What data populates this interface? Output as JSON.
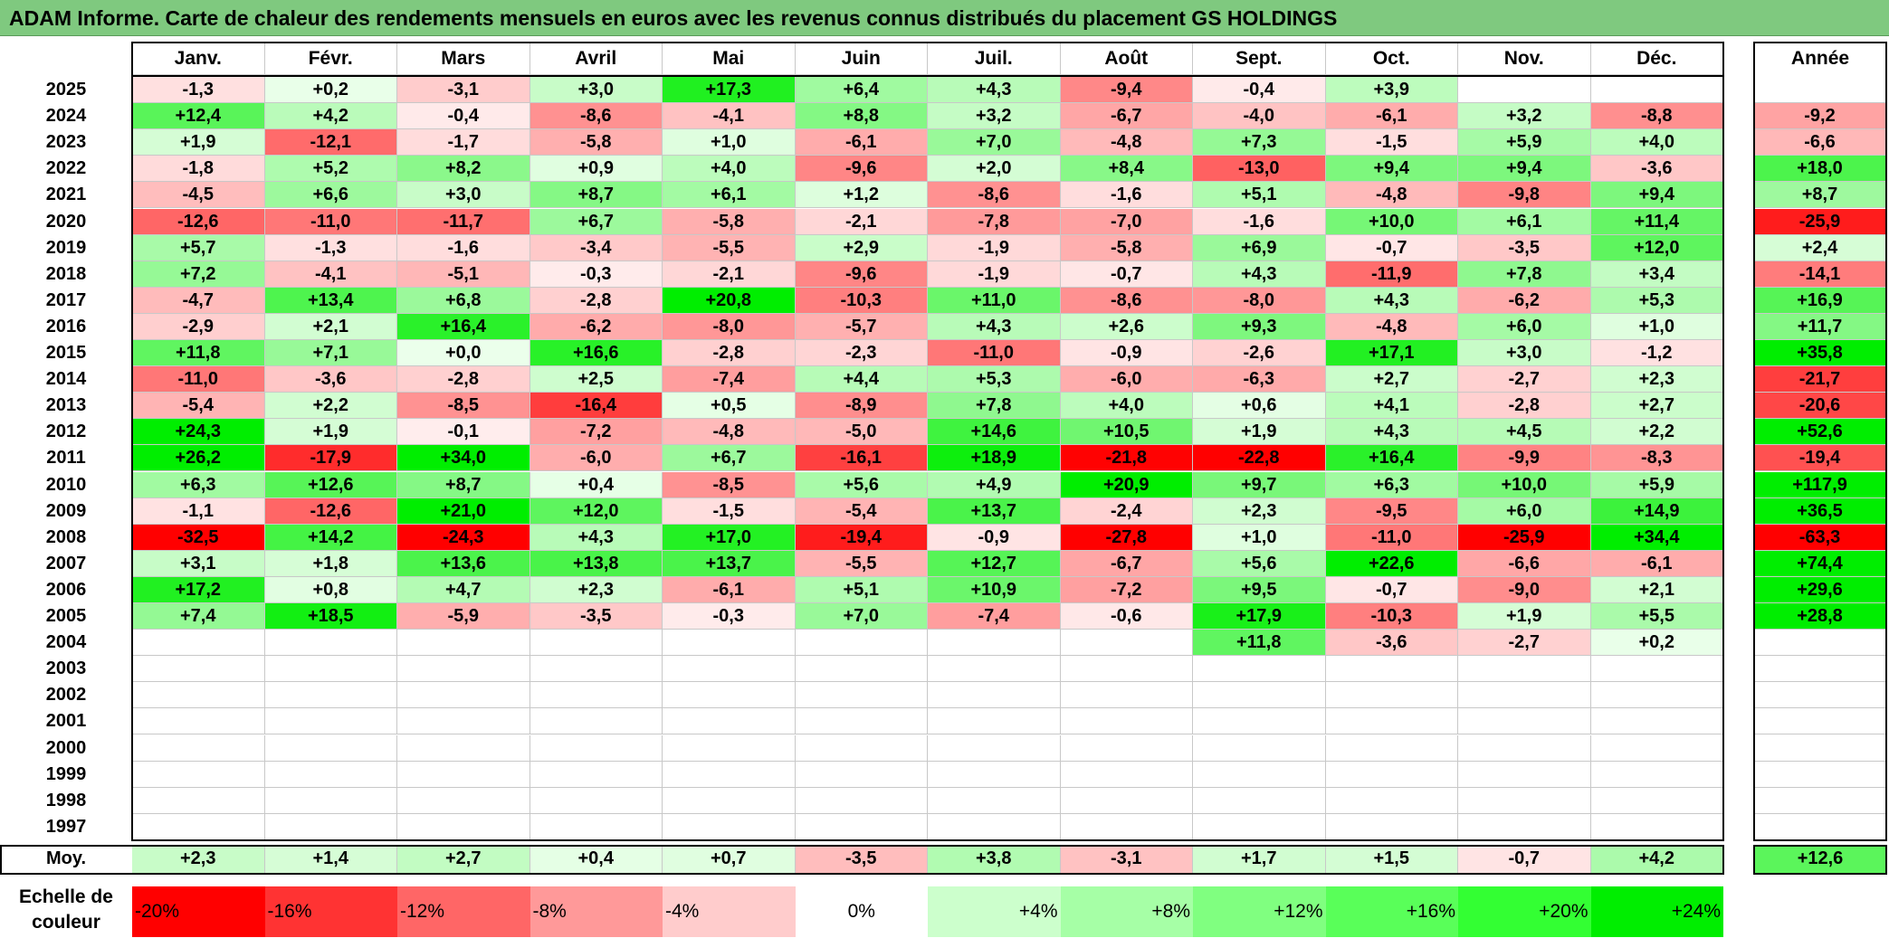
{
  "title": "ADAM Informe. Carte de chaleur des rendements mensuels en euros avec les revenus connus distribués du placement GS HOLDINGS",
  "chart_data": {
    "type": "heatmap",
    "title": "ADAM Informe. Carte de chaleur des rendements mensuels en euros avec les revenus connus distribués du placement GS HOLDINGS",
    "columns": [
      "Janv.",
      "Févr.",
      "Mars",
      "Avril",
      "Mai",
      "Juin",
      "Juil.",
      "Août",
      "Sept.",
      "Oct.",
      "Nov.",
      "Déc."
    ],
    "annual_header": "Année",
    "rows": [
      {
        "year": "2025",
        "values": [
          "-1,3",
          "+0,2",
          "-3,1",
          "+3,0",
          "+17,3",
          "+6,4",
          "+4,3",
          "-9,4",
          "-0,4",
          "+3,9",
          "",
          ""
        ],
        "annual": ""
      },
      {
        "year": "2024",
        "values": [
          "+12,4",
          "+4,2",
          "-0,4",
          "-8,6",
          "-4,1",
          "+8,8",
          "+3,2",
          "-6,7",
          "-4,0",
          "-6,1",
          "+3,2",
          "-8,8"
        ],
        "annual": "-9,2"
      },
      {
        "year": "2023",
        "values": [
          "+1,9",
          "-12,1",
          "-1,7",
          "-5,8",
          "+1,0",
          "-6,1",
          "+7,0",
          "-4,8",
          "+7,3",
          "-1,5",
          "+5,9",
          "+4,0"
        ],
        "annual": "-6,6"
      },
      {
        "year": "2022",
        "values": [
          "-1,8",
          "+5,2",
          "+8,2",
          "+0,9",
          "+4,0",
          "-9,6",
          "+2,0",
          "+8,4",
          "-13,0",
          "+9,4",
          "+9,4",
          "-3,6"
        ],
        "annual": "+18,0"
      },
      {
        "year": "2021",
        "values": [
          "-4,5",
          "+6,6",
          "+3,0",
          "+8,7",
          "+6,1",
          "+1,2",
          "-8,6",
          "-1,6",
          "+5,1",
          "-4,8",
          "-9,8",
          "+9,4"
        ],
        "annual": "+8,7"
      },
      {
        "year": "2020",
        "values": [
          "-12,6",
          "-11,0",
          "-11,7",
          "+6,7",
          "-5,8",
          "-2,1",
          "-7,8",
          "-7,0",
          "-1,6",
          "+10,0",
          "+6,1",
          "+11,4"
        ],
        "annual": "-25,9"
      },
      {
        "year": "2019",
        "values": [
          "+5,7",
          "-1,3",
          "-1,6",
          "-3,4",
          "-5,5",
          "+2,9",
          "-1,9",
          "-5,8",
          "+6,9",
          "-0,7",
          "-3,5",
          "+12,0"
        ],
        "annual": "+2,4"
      },
      {
        "year": "2018",
        "values": [
          "+7,2",
          "-4,1",
          "-5,1",
          "-0,3",
          "-2,1",
          "-9,6",
          "-1,9",
          "-0,7",
          "+4,3",
          "-11,9",
          "+7,8",
          "+3,4"
        ],
        "annual": "-14,1"
      },
      {
        "year": "2017",
        "values": [
          "-4,7",
          "+13,4",
          "+6,8",
          "-2,8",
          "+20,8",
          "-10,3",
          "+11,0",
          "-8,6",
          "-8,0",
          "+4,3",
          "-6,2",
          "+5,3"
        ],
        "annual": "+16,9"
      },
      {
        "year": "2016",
        "values": [
          "-2,9",
          "+2,1",
          "+16,4",
          "-6,2",
          "-8,0",
          "-5,7",
          "+4,3",
          "+2,6",
          "+9,3",
          "-4,8",
          "+6,0",
          "+1,0"
        ],
        "annual": "+11,7"
      },
      {
        "year": "2015",
        "values": [
          "+11,8",
          "+7,1",
          "+0,0",
          "+16,6",
          "-2,8",
          "-2,3",
          "-11,0",
          "-0,9",
          "-2,6",
          "+17,1",
          "+3,0",
          "-1,2"
        ],
        "annual": "+35,8"
      },
      {
        "year": "2014",
        "values": [
          "-11,0",
          "-3,6",
          "-2,8",
          "+2,5",
          "-7,4",
          "+4,4",
          "+5,3",
          "-6,0",
          "-6,3",
          "+2,7",
          "-2,7",
          "+2,3"
        ],
        "annual": "-21,7"
      },
      {
        "year": "2013",
        "values": [
          "-5,4",
          "+2,2",
          "-8,5",
          "-16,4",
          "+0,5",
          "-8,9",
          "+7,8",
          "+4,0",
          "+0,6",
          "+4,1",
          "-2,8",
          "+2,7"
        ],
        "annual": "-20,6"
      },
      {
        "year": "2012",
        "values": [
          "+24,3",
          "+1,9",
          "-0,1",
          "-7,2",
          "-4,8",
          "-5,0",
          "+14,6",
          "+10,5",
          "+1,9",
          "+4,3",
          "+4,5",
          "+2,2"
        ],
        "annual": "+52,6"
      },
      {
        "year": "2011",
        "values": [
          "+26,2",
          "-17,9",
          "+34,0",
          "-6,0",
          "+6,7",
          "-16,1",
          "+18,9",
          "-21,8",
          "-22,8",
          "+16,4",
          "-9,9",
          "-8,3"
        ],
        "annual": "-19,4"
      },
      {
        "year": "2010",
        "values": [
          "+6,3",
          "+12,6",
          "+8,7",
          "+0,4",
          "-8,5",
          "+5,6",
          "+4,9",
          "+20,9",
          "+9,7",
          "+6,3",
          "+10,0",
          "+5,9"
        ],
        "annual": "+117,9"
      },
      {
        "year": "2009",
        "values": [
          "-1,1",
          "-12,6",
          "+21,0",
          "+12,0",
          "-1,5",
          "-5,4",
          "+13,7",
          "-2,4",
          "+2,3",
          "-9,5",
          "+6,0",
          "+14,9"
        ],
        "annual": "+36,5"
      },
      {
        "year": "2008",
        "values": [
          "-32,5",
          "+14,2",
          "-24,3",
          "+4,3",
          "+17,0",
          "-19,4",
          "-0,9",
          "-27,8",
          "+1,0",
          "-11,0",
          "-25,9",
          "+34,4"
        ],
        "annual": "-63,3"
      },
      {
        "year": "2007",
        "values": [
          "+3,1",
          "+1,8",
          "+13,6",
          "+13,8",
          "+13,7",
          "-5,5",
          "+12,7",
          "-6,7",
          "+5,6",
          "+22,6",
          "-6,6",
          "-6,1"
        ],
        "annual": "+74,4"
      },
      {
        "year": "2006",
        "values": [
          "+17,2",
          "+0,8",
          "+4,7",
          "+2,3",
          "-6,1",
          "+5,1",
          "+10,9",
          "-7,2",
          "+9,5",
          "-0,7",
          "-9,0",
          "+2,1"
        ],
        "annual": "+29,6"
      },
      {
        "year": "2005",
        "values": [
          "+7,4",
          "+18,5",
          "-5,9",
          "-3,5",
          "-0,3",
          "+7,0",
          "-7,4",
          "-0,6",
          "+17,9",
          "-10,3",
          "+1,9",
          "+5,5"
        ],
        "annual": "+28,8"
      },
      {
        "year": "2004",
        "values": [
          "",
          "",
          "",
          "",
          "",
          "",
          "",
          "",
          "+11,8",
          "-3,6",
          "-2,7",
          "+0,2"
        ],
        "annual": ""
      },
      {
        "year": "2003",
        "values": [
          "",
          "",
          "",
          "",
          "",
          "",
          "",
          "",
          "",
          "",
          "",
          ""
        ],
        "annual": ""
      },
      {
        "year": "2002",
        "values": [
          "",
          "",
          "",
          "",
          "",
          "",
          "",
          "",
          "",
          "",
          "",
          ""
        ],
        "annual": ""
      },
      {
        "year": "2001",
        "values": [
          "",
          "",
          "",
          "",
          "",
          "",
          "",
          "",
          "",
          "",
          "",
          ""
        ],
        "annual": ""
      },
      {
        "year": "2000",
        "values": [
          "",
          "",
          "",
          "",
          "",
          "",
          "",
          "",
          "",
          "",
          "",
          ""
        ],
        "annual": ""
      },
      {
        "year": "1999",
        "values": [
          "",
          "",
          "",
          "",
          "",
          "",
          "",
          "",
          "",
          "",
          "",
          ""
        ],
        "annual": ""
      },
      {
        "year": "1998",
        "values": [
          "",
          "",
          "",
          "",
          "",
          "",
          "",
          "",
          "",
          "",
          "",
          ""
        ],
        "annual": ""
      },
      {
        "year": "1997",
        "values": [
          "",
          "",
          "",
          "",
          "",
          "",
          "",
          "",
          "",
          "",
          "",
          ""
        ],
        "annual": ""
      }
    ],
    "average": {
      "label": "Moy.",
      "values": [
        "+2,3",
        "+1,4",
        "+2,7",
        "+0,4",
        "+0,7",
        "-3,5",
        "+3,8",
        "-3,1",
        "+1,7",
        "+1,5",
        "-0,7",
        "+4,2"
      ],
      "annual": "+12,6"
    },
    "color_scale": {
      "label": "Echelle de couleur",
      "stops": [
        "-20%",
        "-16%",
        "-12%",
        "-8%",
        "-4%",
        "0%",
        "+4%",
        "+8%",
        "+12%",
        "+16%",
        "+20%",
        "+24%"
      ],
      "colors": [
        "#ff0000",
        "#ff3333",
        "#ff6666",
        "#ff9999",
        "#ffcccc",
        "#ffffff",
        "#ccffcc",
        "#a6ffa6",
        "#80ff80",
        "#59ff59",
        "#33ff33",
        "#00ee00"
      ]
    }
  }
}
